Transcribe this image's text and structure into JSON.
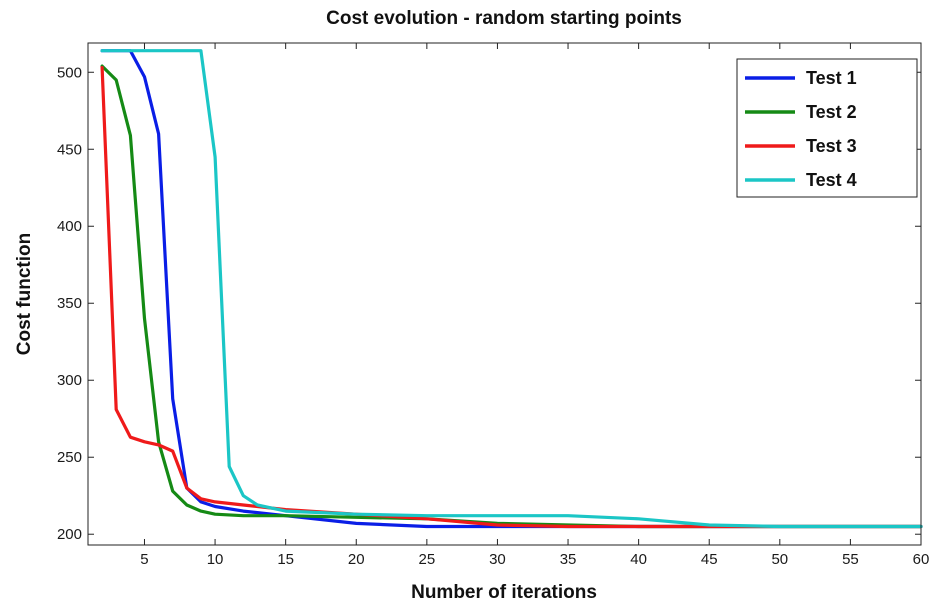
{
  "chart_data": {
    "type": "line",
    "title": "Cost evolution - random starting points",
    "xlabel": "Number of iterations",
    "ylabel": "Cost function",
    "xlim": [
      1,
      60
    ],
    "ylim": [
      193,
      519
    ],
    "xticks": [
      5,
      10,
      15,
      20,
      25,
      30,
      35,
      40,
      45,
      50,
      55,
      60
    ],
    "yticks": [
      200,
      250,
      300,
      350,
      400,
      450,
      500
    ],
    "grid": false,
    "legend_position": "top-right",
    "series": [
      {
        "name": "Test 1",
        "color": "#0a1ee6",
        "points": [
          [
            2,
            514
          ],
          [
            3,
            514
          ],
          [
            4,
            514
          ],
          [
            5,
            497
          ],
          [
            6,
            460
          ],
          [
            7,
            288
          ],
          [
            8,
            230
          ],
          [
            9,
            221
          ],
          [
            10,
            218
          ],
          [
            12,
            215
          ],
          [
            15,
            212
          ],
          [
            20,
            207
          ],
          [
            25,
            205
          ],
          [
            30,
            205
          ],
          [
            35,
            205
          ],
          [
            40,
            205
          ],
          [
            45,
            205
          ],
          [
            50,
            205
          ],
          [
            55,
            205
          ],
          [
            60,
            205
          ]
        ]
      },
      {
        "name": "Test 2",
        "color": "#158a15",
        "points": [
          [
            2,
            504
          ],
          [
            3,
            495
          ],
          [
            4,
            459
          ],
          [
            5,
            340
          ],
          [
            6,
            260
          ],
          [
            7,
            228
          ],
          [
            8,
            219
          ],
          [
            9,
            215
          ],
          [
            10,
            213
          ],
          [
            12,
            212
          ],
          [
            15,
            212
          ],
          [
            20,
            211
          ],
          [
            25,
            210
          ],
          [
            30,
            207
          ],
          [
            35,
            206
          ],
          [
            40,
            205
          ],
          [
            45,
            205
          ],
          [
            50,
            205
          ],
          [
            55,
            205
          ],
          [
            60,
            205
          ]
        ]
      },
      {
        "name": "Test 3",
        "color": "#ef1a1a",
        "points": [
          [
            2,
            503
          ],
          [
            3,
            281
          ],
          [
            4,
            263
          ],
          [
            5,
            260
          ],
          [
            6,
            258
          ],
          [
            7,
            254
          ],
          [
            8,
            230
          ],
          [
            9,
            223
          ],
          [
            10,
            221
          ],
          [
            12,
            219
          ],
          [
            15,
            216
          ],
          [
            20,
            213
          ],
          [
            25,
            210
          ],
          [
            30,
            206
          ],
          [
            35,
            205
          ],
          [
            40,
            205
          ],
          [
            45,
            205
          ],
          [
            50,
            205
          ],
          [
            55,
            205
          ],
          [
            60,
            205
          ]
        ]
      },
      {
        "name": "Test 4",
        "color": "#1bc6c6",
        "points": [
          [
            2,
            514
          ],
          [
            3,
            514
          ],
          [
            4,
            514
          ],
          [
            5,
            514
          ],
          [
            6,
            514
          ],
          [
            7,
            514
          ],
          [
            8,
            514
          ],
          [
            9,
            514
          ],
          [
            10,
            445
          ],
          [
            11,
            244
          ],
          [
            12,
            225
          ],
          [
            13,
            219
          ],
          [
            15,
            215
          ],
          [
            20,
            213
          ],
          [
            25,
            212
          ],
          [
            30,
            212
          ],
          [
            35,
            212
          ],
          [
            40,
            210
          ],
          [
            45,
            206
          ],
          [
            50,
            205
          ],
          [
            55,
            205
          ],
          [
            60,
            205
          ]
        ]
      }
    ]
  }
}
